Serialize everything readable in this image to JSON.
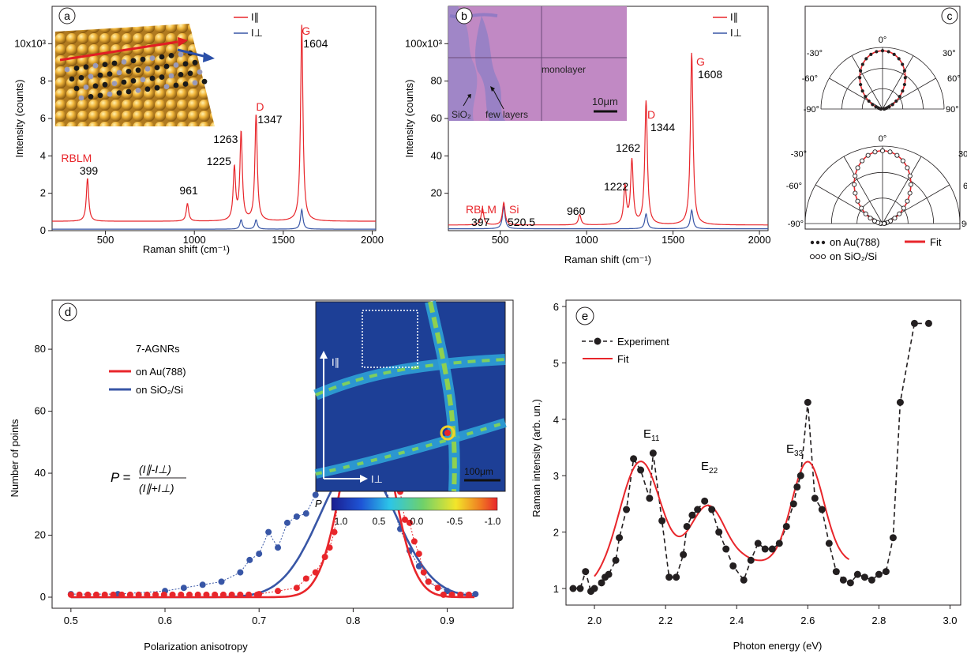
{
  "colors": {
    "red": "#e8262b",
    "blue": "#3856a6",
    "black": "#231f20",
    "map_bg": "#1d3f96"
  },
  "chart_data": [
    {
      "panel": "a",
      "type": "line",
      "xlabel": "Raman shift (cm⁻¹)",
      "ylabel": "Intensity (counts)",
      "x_ticks": [
        "500",
        "1000",
        "1500",
        "2000"
      ],
      "y_ticks": [
        "0",
        "2",
        "4",
        "6",
        "8",
        "10x10³"
      ],
      "xlim": [
        200,
        2020
      ],
      "ylim": [
        0,
        12000
      ],
      "legend": [
        "I∥",
        "I⊥"
      ],
      "series": [
        {
          "name": "I∥",
          "color": "#e8262b",
          "peaks": [
            [
              399,
              2300
            ],
            [
              961,
              950
            ],
            [
              1225,
              2800
            ],
            [
              1263,
              4700
            ],
            [
              1347,
              5700
            ],
            [
              1604,
              10500
            ]
          ],
          "baseline": 500
        },
        {
          "name": "I⊥",
          "color": "#3856a6",
          "peaks": [
            [
              1263,
              500
            ],
            [
              1347,
              500
            ],
            [
              1604,
              1050
            ]
          ],
          "baseline": 80
        }
      ],
      "annotations": [
        {
          "text": "RBLM",
          "value": "399"
        },
        {
          "text": "",
          "value": "961"
        },
        {
          "text": "",
          "value": "1225"
        },
        {
          "text": "",
          "value": "1263"
        },
        {
          "text": "D",
          "value": "1347"
        },
        {
          "text": "G",
          "value": "1604"
        }
      ],
      "label": "a"
    },
    {
      "panel": "b",
      "type": "line",
      "xlabel": "Raman shift (cm⁻¹)",
      "ylabel": "Intensity (counts)",
      "x_ticks": [
        "500",
        "1000",
        "1500",
        "2000"
      ],
      "y_ticks": [
        "20",
        "40",
        "60",
        "80",
        "100x10³"
      ],
      "xlim": [
        200,
        2050
      ],
      "ylim": [
        0,
        120000
      ],
      "legend": [
        "I∥",
        "I⊥"
      ],
      "series": [
        {
          "name": "I∥",
          "color": "#e8262b",
          "peaks": [
            [
              397,
              9000
            ],
            [
              520.5,
              12000
            ],
            [
              960,
              5500
            ],
            [
              1222,
              20000
            ],
            [
              1262,
              34000
            ],
            [
              1344,
              66000
            ],
            [
              1608,
              92000
            ]
          ],
          "baseline": 3000
        },
        {
          "name": "I⊥",
          "color": "#3856a6",
          "peaks": [
            [
              520.5,
              12000
            ],
            [
              1344,
              8000
            ],
            [
              1608,
              10000
            ]
          ],
          "baseline": 1000
        }
      ],
      "annotations": [
        {
          "text": "RBLM",
          "value": "397"
        },
        {
          "text": "Si",
          "value": "520.5"
        },
        {
          "text": "",
          "value": "960"
        },
        {
          "text": "",
          "value": "1222"
        },
        {
          "text": "",
          "value": "1262"
        },
        {
          "text": "D",
          "value": "1344"
        },
        {
          "text": "G",
          "value": "1608"
        }
      ],
      "inset_labels": {
        "monolayer": "monolayer",
        "scale": "10μm",
        "sio2": "SiO₂",
        "few": "few layers"
      },
      "label": "b"
    },
    {
      "panel": "c",
      "type": "scatter",
      "polar": true,
      "angle_labels": [
        "0°",
        "-30°",
        "30°",
        "-60°",
        "60°",
        "-90°",
        "90°"
      ],
      "model": "cos^2(theta)",
      "legend": [
        "on Au(788)",
        "Fit",
        "on SiO₂/Si"
      ],
      "label": "c"
    },
    {
      "panel": "d",
      "type": "line",
      "title": "7-AGNRs",
      "xlabel": "Polarization anisotropy",
      "ylabel": "Number of points",
      "x_ticks": [
        "0.5",
        "0.6",
        "0.7",
        "0.8",
        "0.9"
      ],
      "y_ticks": [
        "0",
        "20",
        "40",
        "60",
        "80"
      ],
      "xlim": [
        0.48,
        0.97
      ],
      "ylim": [
        0,
        92
      ],
      "series": [
        {
          "name": "on Au(788)",
          "color": "#e8262b",
          "fit": {
            "center": 0.815,
            "sigma": 0.025,
            "amp": 68
          },
          "x": [
            0.7,
            0.72,
            0.74,
            0.75,
            0.76,
            0.77,
            0.775,
            0.78,
            0.785,
            0.79,
            0.795,
            0.8,
            0.805,
            0.81,
            0.815,
            0.82,
            0.825,
            0.83,
            0.835,
            0.84,
            0.845,
            0.85,
            0.855,
            0.86,
            0.865,
            0.87,
            0.875,
            0.88,
            0.89
          ],
          "y": [
            1,
            2,
            3,
            6,
            8,
            13,
            16,
            21,
            35,
            38,
            45,
            55,
            60,
            72,
            65,
            70,
            88,
            62,
            57,
            50,
            42,
            34,
            25,
            24,
            18,
            14,
            8,
            5,
            3
          ]
        },
        {
          "name": "on SiO₂/Si",
          "color": "#3856a6",
          "fit": {
            "center": 0.805,
            "sigma": 0.04,
            "amp": 44
          },
          "x": [
            0.5,
            0.55,
            0.6,
            0.62,
            0.64,
            0.66,
            0.68,
            0.69,
            0.7,
            0.71,
            0.72,
            0.73,
            0.74,
            0.75,
            0.76,
            0.77,
            0.78,
            0.79,
            0.8,
            0.81,
            0.82,
            0.83,
            0.84,
            0.85,
            0.86,
            0.87,
            0.88,
            0.9,
            0.93
          ],
          "y": [
            1,
            1,
            2,
            3,
            4,
            5,
            8,
            12,
            14,
            21,
            16,
            24,
            26,
            27,
            33,
            37,
            36,
            38,
            42,
            45,
            40,
            37,
            31,
            22,
            15,
            10,
            5,
            2,
            1
          ]
        }
      ],
      "formula": {
        "lhs": "P =",
        "num": "(I∥-I⊥)",
        "den": "(I∥+I⊥)"
      },
      "map": {
        "y_label": "I∥",
        "x_label": "I⊥",
        "scale": "100μm",
        "colorbar_label": "P",
        "colorbar_ticks": [
          "1.0",
          "0.5",
          "0.0",
          "-0.5",
          "-1.0"
        ]
      },
      "label": "d"
    },
    {
      "panel": "e",
      "type": "line",
      "xlabel": "Photon energy (eV)",
      "ylabel": "Raman intensity (arb. un.)",
      "x_ticks": [
        "2.0",
        "2.2",
        "2.4",
        "2.6",
        "2.8",
        "3.0"
      ],
      "y_ticks": [
        "1",
        "2",
        "3",
        "4",
        "5",
        "6"
      ],
      "xlim": [
        1.92,
        3.03
      ],
      "ylim": [
        0.9,
        6.1
      ],
      "series": [
        {
          "name": "Experiment",
          "color": "#231f20",
          "x": [
            1.94,
            1.96,
            1.975,
            1.99,
            2.0,
            2.02,
            2.03,
            2.04,
            2.06,
            2.07,
            2.09,
            2.11,
            2.13,
            2.155,
            2.165,
            2.19,
            2.21,
            2.23,
            2.25,
            2.26,
            2.275,
            2.29,
            2.31,
            2.33,
            2.35,
            2.37,
            2.39,
            2.42,
            2.44,
            2.46,
            2.48,
            2.5,
            2.52,
            2.54,
            2.56,
            2.57,
            2.58,
            2.6,
            2.62,
            2.64,
            2.66,
            2.68,
            2.7,
            2.72,
            2.74,
            2.76,
            2.78,
            2.8,
            2.82,
            2.84,
            2.86,
            2.9,
            2.94
          ],
          "y": [
            1.0,
            1.0,
            1.3,
            0.95,
            1.0,
            1.1,
            1.2,
            1.25,
            1.5,
            1.9,
            2.4,
            3.3,
            3.1,
            2.6,
            3.4,
            2.2,
            1.2,
            1.2,
            1.6,
            2.1,
            2.3,
            2.4,
            2.55,
            2.4,
            2.0,
            1.7,
            1.4,
            1.15,
            1.5,
            1.8,
            1.7,
            1.7,
            1.8,
            2.1,
            2.5,
            2.8,
            3.0,
            4.3,
            2.6,
            2.4,
            1.8,
            1.3,
            1.15,
            1.1,
            1.25,
            1.2,
            1.15,
            1.25,
            1.3,
            1.9,
            4.3,
            5.7,
            5.7
          ]
        },
        {
          "name": "Fit",
          "color": "#e8262b",
          "model": [
            {
              "center": 2.13,
              "amp": 2.25,
              "sigma": 0.06
            },
            {
              "center": 2.32,
              "amp": 1.45,
              "sigma": 0.055
            },
            {
              "center": 2.6,
              "amp": 1.8,
              "sigma": 0.045
            }
          ],
          "baseline": 1.0,
          "x_range": [
            2.0,
            2.72
          ]
        }
      ],
      "legend": [
        "Experiment",
        "Fit"
      ],
      "annotations": [
        {
          "text": "E",
          "sub": "11"
        },
        {
          "text": "E",
          "sub": "22"
        },
        {
          "text": "E",
          "sub": "33"
        }
      ],
      "label": "e"
    }
  ]
}
